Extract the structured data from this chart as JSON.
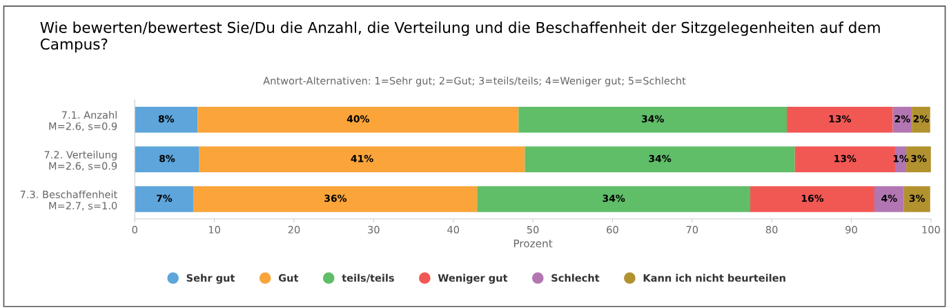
{
  "chart_data": {
    "type": "bar",
    "orientation": "horizontal",
    "stacked": true,
    "title": "Wie bewerten/bewertest Sie/Du die Anzahl, die Verteilung und die Beschaffenheit der Sitzgelegenheiten auf dem Campus?",
    "subtitle": "Antwort-Alternativen: 1=Sehr gut; 2=Gut; 3=teils/teils; 4=Weniger gut; 5=Schlecht",
    "xlabel": "Prozent",
    "categories": [
      "7.1. Anzahl\nM=2.6, s=0.9",
      "7.2. Verteilung\nM=2.6, s=0.9",
      "7.3. Beschaffenheit\nM=2.7, s=1.0"
    ],
    "series": [
      {
        "name": "Sehr gut",
        "color": "#5da5da",
        "values": [
          7.9,
          8.1,
          7.4
        ],
        "value_labels": [
          "8%",
          "8%",
          "7%"
        ]
      },
      {
        "name": "Gut",
        "color": "#faa43a",
        "values": [
          40.3,
          40.9,
          35.6
        ],
        "value_labels": [
          "40%",
          "41%",
          "36%"
        ]
      },
      {
        "name": "teils/teils",
        "color": "#60bd68",
        "values": [
          33.7,
          33.9,
          34.3
        ],
        "value_labels": [
          "34%",
          "34%",
          "34%"
        ]
      },
      {
        "name": "Weniger gut",
        "color": "#f15854",
        "values": [
          13.3,
          12.6,
          15.6
        ],
        "value_labels": [
          "13%",
          "13%",
          "16%"
        ]
      },
      {
        "name": "Schlecht",
        "color": "#b276b2",
        "values": [
          2.4,
          1.4,
          3.7
        ],
        "value_labels": [
          "2%",
          "1%",
          "4%"
        ]
      },
      {
        "name": "Kann ich nicht beurteilen",
        "color": "#b2912f",
        "values": [
          2.3,
          3.1,
          3.3
        ],
        "value_labels": [
          "2%",
          "3%",
          "3%"
        ]
      }
    ],
    "xlim": [
      0,
      100
    ],
    "xticks": [
      0,
      10,
      20,
      30,
      40,
      50,
      60,
      70,
      80,
      90,
      100
    ],
    "grid": false,
    "legend": "bottom",
    "marker": "circle"
  }
}
